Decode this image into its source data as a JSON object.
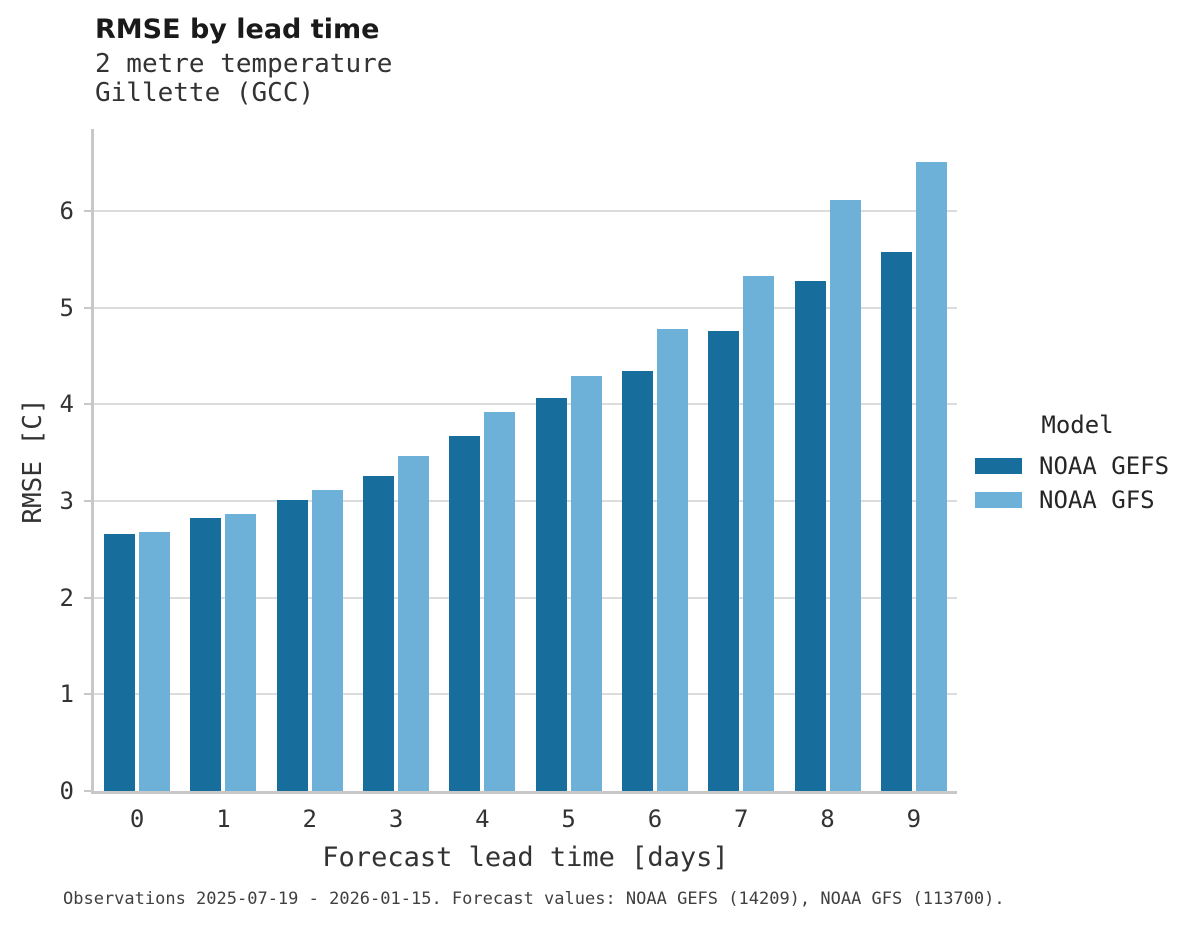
{
  "header": {
    "title": "RMSE by lead time",
    "subtitle_line1": "2 metre temperature",
    "subtitle_line2": "Gillette (GCC)"
  },
  "chart_data": {
    "type": "bar",
    "title": "RMSE by lead time",
    "subtitle": [
      "2 metre temperature",
      "Gillette (GCC)"
    ],
    "categories": [
      "0",
      "1",
      "2",
      "3",
      "4",
      "5",
      "6",
      "7",
      "8",
      "9"
    ],
    "series": [
      {
        "name": "NOAA GEFS",
        "color": "#176d9c",
        "values": [
          2.66,
          2.83,
          3.01,
          3.26,
          3.67,
          4.07,
          4.35,
          4.76,
          5.28,
          5.58
        ]
      },
      {
        "name": "NOAA GFS",
        "color": "#6eb1d8",
        "values": [
          2.68,
          2.87,
          3.11,
          3.47,
          3.92,
          4.29,
          4.78,
          5.33,
          6.12,
          6.51
        ]
      }
    ],
    "xlabel": "Forecast lead time [days]",
    "ylabel": "RMSE [C]",
    "ylim": [
      0,
      6.85
    ],
    "yticks": [
      0,
      1,
      2,
      3,
      4,
      5,
      6
    ],
    "grid": "horizontal-gridlines-on",
    "legend_title": "Model",
    "legend_position": "right"
  },
  "legend": {
    "title": "Model",
    "entries": [
      {
        "label": "NOAA GEFS",
        "color": "#176d9c"
      },
      {
        "label": "NOAA GFS",
        "color": "#6eb1d8"
      }
    ]
  },
  "footer": {
    "caption": "Observations 2025-07-19 - 2026-01-15. Forecast values: NOAA GEFS (14209), NOAA GFS (113700)."
  },
  "colors": {
    "series_dark": "#176d9c",
    "series_light": "#6eb1d8",
    "gridline": "#dcdcdc",
    "axis": "#c8c8c8",
    "text": "#333333"
  }
}
